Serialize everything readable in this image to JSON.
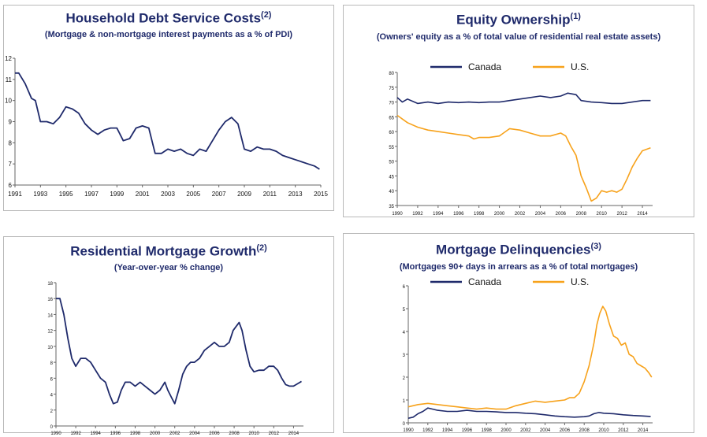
{
  "charts": {
    "debt": {
      "title": "Household Debt Service Costs",
      "title_sup": "(2)",
      "subtitle": "(Mortgage & non-mortgage interest payments as a % of PDI)"
    },
    "equity": {
      "title": "Equity Ownership",
      "title_sup": "(1)",
      "subtitle": "(Owners' equity as a % of total value of residential real estate assets)"
    },
    "growth": {
      "title": "Residential Mortgage Growth",
      "title_sup": "(2)",
      "subtitle": "(Year-over-year % change)"
    },
    "delinq": {
      "title": "Mortgage Delinquencies",
      "title_sup": "(3)",
      "subtitle": "(Mortgages 90+ days in arrears as a % of total mortgages)"
    }
  },
  "colors": {
    "canada": "#1f2a6b",
    "us": "#f7a21b",
    "title": "#1f2a6b"
  },
  "chart_data": [
    {
      "id": "debt",
      "type": "line",
      "title": "Household Debt Service Costs(2)",
      "subtitle": "(Mortgage & non-mortgage interest payments as a % of PDI)",
      "xlim": [
        1991,
        2015
      ],
      "ylim": [
        6,
        12
      ],
      "xticks": [
        1991,
        1993,
        1995,
        1997,
        1999,
        2001,
        2003,
        2005,
        2007,
        2009,
        2011,
        2013,
        2015
      ],
      "yticks": [
        6,
        7,
        8,
        9,
        10,
        11,
        12
      ],
      "grid": false,
      "series": [
        {
          "key": "canada",
          "x": [
            1991,
            1991.3,
            1991.8,
            1992.3,
            1992.6,
            1993.0,
            1993.5,
            1994.0,
            1994.5,
            1995.0,
            1995.5,
            1996.0,
            1996.5,
            1997.0,
            1997.5,
            1998.0,
            1998.5,
            1999.0,
            1999.5,
            2000.0,
            2000.5,
            2001.0,
            2001.5,
            2002.0,
            2002.5,
            2003.0,
            2003.5,
            2004.0,
            2004.5,
            2005.0,
            2005.5,
            2006.0,
            2006.5,
            2007.0,
            2007.5,
            2008.0,
            2008.5,
            2009.0,
            2009.5,
            2010.0,
            2010.5,
            2011.0,
            2011.5,
            2012.0,
            2012.5,
            2013.0,
            2013.5,
            2014.0,
            2014.5,
            2014.9
          ],
          "y": [
            11.3,
            11.3,
            10.8,
            10.1,
            10.0,
            9.0,
            9.0,
            8.9,
            9.2,
            9.7,
            9.6,
            9.4,
            8.9,
            8.6,
            8.4,
            8.6,
            8.7,
            8.7,
            8.1,
            8.2,
            8.7,
            8.8,
            8.7,
            7.5,
            7.5,
            7.7,
            7.6,
            7.7,
            7.5,
            7.4,
            7.7,
            7.6,
            8.1,
            8.6,
            9.0,
            9.2,
            8.9,
            7.7,
            7.6,
            7.8,
            7.7,
            7.7,
            7.6,
            7.4,
            7.3,
            7.2,
            7.1,
            7.0,
            6.9,
            6.75
          ]
        }
      ]
    },
    {
      "id": "equity",
      "type": "line",
      "title": "Equity Ownership(1)",
      "subtitle": "(Owners' equity as a % of total value of residential real estate assets)",
      "xlim": [
        1990,
        2015
      ],
      "ylim": [
        35,
        80
      ],
      "xticks": [
        1990,
        1992,
        1994,
        1996,
        1998,
        2000,
        2002,
        2004,
        2006,
        2008,
        2010,
        2012,
        2014
      ],
      "yticks": [
        35,
        40,
        45,
        50,
        55,
        60,
        65,
        70,
        75,
        80
      ],
      "grid": false,
      "legend": {
        "position": "top",
        "entries": [
          "Canada",
          "U.S."
        ]
      },
      "series": [
        {
          "key": "canada",
          "name": "Canada",
          "x": [
            1990,
            1990.5,
            1991,
            1992,
            1993,
            1994,
            1995,
            1996,
            1997,
            1998,
            1999,
            2000,
            2001,
            2002,
            2003,
            2004,
            2005,
            2006,
            2006.7,
            2007.5,
            2008,
            2009,
            2010,
            2011,
            2012,
            2013,
            2014,
            2014.8
          ],
          "y": [
            71.5,
            70.0,
            71.0,
            69.5,
            70.0,
            69.5,
            70.0,
            69.8,
            70.0,
            69.8,
            70.0,
            70.0,
            70.5,
            71.0,
            71.5,
            72.0,
            71.5,
            72.0,
            73.0,
            72.5,
            70.5,
            70.0,
            69.8,
            69.5,
            69.5,
            70.0,
            70.5,
            70.5
          ]
        },
        {
          "key": "us",
          "name": "U.S.",
          "x": [
            1990,
            1991,
            1992,
            1993,
            1994,
            1995,
            1996,
            1997,
            1997.5,
            1998,
            1999,
            2000,
            2001,
            2002,
            2003,
            2004,
            2005,
            2006,
            2006.5,
            2007,
            2007.5,
            2008,
            2008.5,
            2009,
            2009.5,
            2010,
            2010.5,
            2011,
            2011.5,
            2012,
            2012.5,
            2013,
            2013.5,
            2014,
            2014.8
          ],
          "y": [
            65.5,
            63.0,
            61.5,
            60.5,
            60.0,
            59.5,
            59.0,
            58.5,
            57.5,
            58.0,
            58.0,
            58.5,
            61.0,
            60.5,
            59.5,
            58.5,
            58.5,
            59.5,
            58.5,
            55.0,
            52.0,
            45.0,
            41.0,
            36.5,
            37.5,
            40.0,
            39.5,
            40.0,
            39.5,
            40.5,
            44.0,
            48.0,
            51.0,
            53.5,
            54.5
          ]
        }
      ]
    },
    {
      "id": "growth",
      "type": "line",
      "title": "Residential Mortgage Growth(2)",
      "subtitle": "(Year-over-year % change)",
      "xlim": [
        1990,
        2015
      ],
      "ylim": [
        0,
        18
      ],
      "xticks": [
        1990,
        1992,
        1994,
        1996,
        1998,
        2000,
        2002,
        2004,
        2006,
        2008,
        2010,
        2012,
        2014
      ],
      "yticks": [
        0,
        2,
        4,
        6,
        8,
        10,
        12,
        14,
        16,
        18
      ],
      "grid": false,
      "series": [
        {
          "key": "canada",
          "x": [
            1990,
            1990.4,
            1990.8,
            1991.2,
            1991.6,
            1992.0,
            1992.5,
            1993.0,
            1993.5,
            1994.0,
            1994.5,
            1995.0,
            1995.4,
            1995.8,
            1996.2,
            1996.6,
            1997.0,
            1997.5,
            1998.0,
            1998.5,
            1999.0,
            1999.5,
            2000.0,
            2000.5,
            2001.0,
            2001.3,
            2001.7,
            2002.0,
            2002.4,
            2002.8,
            2003.2,
            2003.6,
            2004.0,
            2004.5,
            2005.0,
            2005.5,
            2006.0,
            2006.5,
            2007.0,
            2007.5,
            2007.9,
            2008.2,
            2008.5,
            2008.8,
            2009.2,
            2009.6,
            2010.0,
            2010.5,
            2011.0,
            2011.5,
            2012.0,
            2012.4,
            2012.8,
            2013.2,
            2013.6,
            2014.0,
            2014.4,
            2014.8
          ],
          "y": [
            16.0,
            16.0,
            14.0,
            11.0,
            8.5,
            7.5,
            8.5,
            8.5,
            8.0,
            7.0,
            6.0,
            5.5,
            4.0,
            2.8,
            3.0,
            4.5,
            5.5,
            5.5,
            5.0,
            5.5,
            5.0,
            4.5,
            4.0,
            4.5,
            5.5,
            4.5,
            3.5,
            2.8,
            4.5,
            6.5,
            7.5,
            8.0,
            8.0,
            8.5,
            9.5,
            10.0,
            10.5,
            10.0,
            10.0,
            10.5,
            12.0,
            12.5,
            13.0,
            12.0,
            9.5,
            7.5,
            6.8,
            7.0,
            7.0,
            7.5,
            7.5,
            7.0,
            6.0,
            5.2,
            5.0,
            5.0,
            5.3,
            5.6
          ]
        }
      ]
    },
    {
      "id": "delinq",
      "type": "line",
      "title": "Mortgage Delinquencies(3)",
      "subtitle": "(Mortgages 90+ days in arrears as a % of total mortgages)",
      "xlim": [
        1990,
        2015
      ],
      "ylim": [
        0,
        6
      ],
      "xticks": [
        1990,
        1992,
        1994,
        1996,
        1998,
        2000,
        2002,
        2004,
        2006,
        2008,
        2010,
        2012,
        2014
      ],
      "yticks": [
        0,
        1,
        2,
        3,
        4,
        5,
        6
      ],
      "grid": false,
      "legend": {
        "position": "top",
        "entries": [
          "Canada",
          "U.S."
        ]
      },
      "series": [
        {
          "key": "canada",
          "name": "Canada",
          "x": [
            1990,
            1990.5,
            1991,
            1991.5,
            1992,
            1992.5,
            1993,
            1994,
            1995,
            1996,
            1997,
            1998,
            1999,
            2000,
            2001,
            2002,
            2003,
            2004,
            2005,
            2006,
            2007,
            2008,
            2008.5,
            2009,
            2009.5,
            2010,
            2011,
            2012,
            2013,
            2014,
            2014.8
          ],
          "y": [
            0.2,
            0.25,
            0.4,
            0.5,
            0.65,
            0.6,
            0.55,
            0.5,
            0.5,
            0.55,
            0.5,
            0.5,
            0.48,
            0.45,
            0.45,
            0.42,
            0.4,
            0.35,
            0.3,
            0.27,
            0.25,
            0.27,
            0.3,
            0.4,
            0.45,
            0.42,
            0.4,
            0.35,
            0.32,
            0.3,
            0.28
          ]
        },
        {
          "key": "us",
          "name": "U.S.",
          "x": [
            1990,
            1991,
            1992,
            1993,
            1994,
            1995,
            1996,
            1997,
            1998,
            1999,
            2000,
            2001,
            2002,
            2003,
            2004,
            2005,
            2006,
            2006.5,
            2007,
            2007.5,
            2008,
            2008.5,
            2009,
            2009.3,
            2009.6,
            2009.9,
            2010.2,
            2010.6,
            2011.0,
            2011.4,
            2011.8,
            2012.2,
            2012.6,
            2013.0,
            2013.4,
            2013.8,
            2014.2,
            2014.6,
            2014.9
          ],
          "y": [
            0.7,
            0.8,
            0.85,
            0.8,
            0.75,
            0.7,
            0.65,
            0.6,
            0.65,
            0.6,
            0.6,
            0.75,
            0.85,
            0.95,
            0.9,
            0.95,
            1.0,
            1.1,
            1.1,
            1.3,
            1.8,
            2.5,
            3.5,
            4.3,
            4.8,
            5.1,
            4.9,
            4.3,
            3.8,
            3.7,
            3.4,
            3.5,
            3.0,
            2.9,
            2.6,
            2.5,
            2.4,
            2.2,
            2.0
          ]
        }
      ]
    }
  ]
}
